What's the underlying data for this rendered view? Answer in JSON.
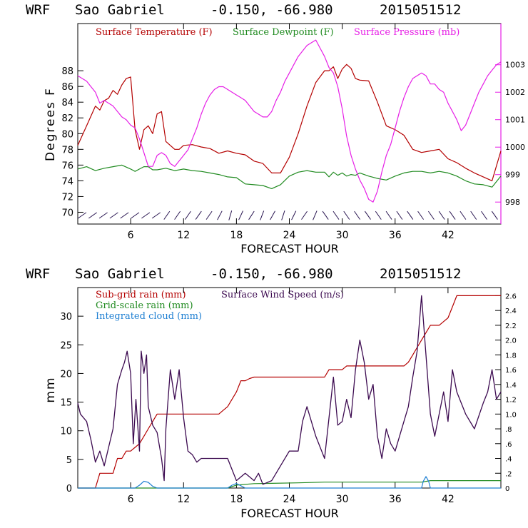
{
  "colors": {
    "temperature": "#b40000",
    "dewpoint": "#218b21",
    "pressure": "#e61ee6",
    "subgrid": "#b40000",
    "gridscale": "#218b21",
    "cloud": "#1e7fd2",
    "wind": "#3c0a50",
    "axes": "#000000",
    "wind_barb": "#281450"
  },
  "chart_data": [
    {
      "type": "line",
      "header": {
        "model": "WRF",
        "station": "Sao Gabriel",
        "coords": "-0.150, -66.980",
        "run": "2015051512"
      },
      "xlabel": "FORECAST HOUR",
      "ylabel": "Degrees F",
      "xlim": [
        0,
        48
      ],
      "ylim": [
        68.5,
        94
      ],
      "y2lim": [
        997.2,
        1004.5
      ],
      "xticks": [
        6,
        12,
        18,
        24,
        30,
        36,
        42
      ],
      "yticks": [
        70,
        72,
        74,
        76,
        78,
        80,
        82,
        84,
        86,
        88
      ],
      "y2ticks": [
        998,
        999,
        1000,
        1001,
        1002,
        1003
      ],
      "legend": [
        "Surface Temperature (F)",
        "Surface Dewpoint (F)",
        "Surface Pressure (mb)"
      ],
      "series": [
        {
          "name": "Surface Temperature (F)",
          "x": [
            0,
            1,
            2,
            2.5,
            3,
            3.5,
            4,
            4.5,
            5,
            5.5,
            6,
            6.5,
            7,
            7.5,
            8,
            8.5,
            9,
            9.5,
            10,
            10.5,
            11,
            11.5,
            12,
            13,
            14,
            15,
            16,
            17,
            18,
            19,
            20,
            21,
            22,
            23,
            24,
            25,
            26,
            27,
            28,
            28.5,
            29,
            29.5,
            30,
            30.5,
            31,
            31.5,
            32,
            33,
            34,
            35,
            36,
            37,
            38,
            39,
            40,
            41,
            42,
            43,
            44,
            45,
            46,
            47,
            48
          ],
          "values": [
            78.5,
            81,
            83.5,
            83,
            84.2,
            84.5,
            85.5,
            85,
            86.2,
            87,
            87.2,
            80.5,
            78,
            80.5,
            81,
            80,
            82.5,
            82.8,
            79,
            78.5,
            78,
            78,
            78.5,
            78.6,
            78.3,
            78.1,
            77.5,
            77.8,
            77.5,
            77.3,
            76.5,
            76.2,
            75,
            75,
            77,
            80,
            83.5,
            86.5,
            88,
            88,
            88.5,
            87,
            88.2,
            88.8,
            88.3,
            87,
            86.8,
            86.7,
            84,
            81,
            80.5,
            79.8,
            78,
            77.6,
            77.8,
            78,
            76.8,
            76.3,
            75.6,
            75,
            74.5,
            74,
            77.8
          ]
        },
        {
          "name": "Surface Dewpoint (F)",
          "x": [
            0,
            1,
            2,
            3,
            4,
            5,
            6,
            6.5,
            7,
            7.5,
            8,
            8.5,
            9,
            10,
            11,
            12,
            13,
            14,
            15,
            16,
            17,
            18,
            19,
            20,
            21,
            22,
            23,
            24,
            25,
            26,
            27,
            28,
            28.5,
            29,
            29.5,
            30,
            30.5,
            31,
            31.5,
            32,
            33,
            34,
            35,
            36,
            37,
            38,
            39,
            40,
            41,
            42,
            43,
            44,
            45,
            46,
            47,
            48
          ],
          "values": [
            75.5,
            75.8,
            75.3,
            75.6,
            75.8,
            76,
            75.5,
            75.2,
            75.5,
            75.8,
            75.8,
            75.4,
            75.4,
            75.6,
            75.3,
            75.5,
            75.3,
            75.2,
            75,
            74.8,
            74.5,
            74.4,
            73.6,
            73.5,
            73.4,
            73,
            73.5,
            74.6,
            75.1,
            75.3,
            75.1,
            75.1,
            74.5,
            75.1,
            74.7,
            75,
            74.6,
            74.8,
            74.7,
            75,
            74.6,
            74.3,
            74.1,
            74.6,
            75,
            75.2,
            75.2,
            75,
            75.2,
            75,
            74.6,
            74,
            73.6,
            73.5,
            73.2,
            74.6
          ]
        },
        {
          "name": "Surface Pressure (mb)",
          "x": [
            0,
            0.5,
            1,
            1.5,
            2,
            2.5,
            3,
            3.5,
            4,
            4.5,
            5,
            5.5,
            6,
            6.5,
            7,
            7.5,
            8,
            8.5,
            9,
            9.5,
            10,
            10.5,
            11,
            11.5,
            12,
            12.5,
            13,
            13.5,
            14,
            14.5,
            15,
            15.5,
            16,
            16.5,
            17,
            17.5,
            18,
            18.5,
            19,
            19.5,
            20,
            20.5,
            21,
            21.5,
            22,
            22.5,
            23,
            23.5,
            24,
            24.5,
            25,
            25.5,
            26,
            26.5,
            27,
            27.5,
            28,
            28.5,
            29,
            29.5,
            30,
            30.5,
            31,
            31.5,
            32,
            32.5,
            33,
            33.5,
            34,
            34.5,
            35,
            35.5,
            36,
            36.5,
            37,
            37.5,
            38,
            38.5,
            39,
            39.5,
            40,
            40.5,
            41,
            41.5,
            42,
            42.5,
            43,
            43.5,
            44,
            44.5,
            45,
            45.5,
            46,
            46.5,
            47,
            47.5,
            48
          ],
          "values": [
            1002.6,
            1002.5,
            1002.4,
            1002.2,
            1002,
            1001.6,
            1001.7,
            1001.6,
            1001.5,
            1001.3,
            1001.1,
            1001,
            1000.8,
            1000.7,
            1000.3,
            999.8,
            999.3,
            999.3,
            999.7,
            999.8,
            999.7,
            999.4,
            999.3,
            999.5,
            999.7,
            999.9,
            1000.3,
            1000.7,
            1001.2,
            1001.6,
            1001.9,
            1002.1,
            1002.2,
            1002.2,
            1002.1,
            1002,
            1001.9,
            1001.8,
            1001.7,
            1001.5,
            1001.3,
            1001.2,
            1001.1,
            1001.1,
            1001.3,
            1001.7,
            1002,
            1002.4,
            1002.7,
            1003,
            1003.3,
            1003.5,
            1003.7,
            1003.8,
            1003.9,
            1003.6,
            1003.3,
            1002.9,
            1002.7,
            1002.2,
            1001.4,
            1000.4,
            999.7,
            999.2,
            998.8,
            998.5,
            998.1,
            998,
            998.4,
            999.1,
            999.7,
            1000.1,
            1000.7,
            1001.3,
            1001.8,
            1002.2,
            1002.5,
            1002.6,
            1002.7,
            1002.6,
            1002.3,
            1002.3,
            1002.1,
            1002,
            1001.6,
            1001.3,
            1001,
            1000.6,
            1000.8,
            1001.2,
            1001.6,
            1002,
            1002.3,
            1002.6,
            1002.8,
            1003,
            1003.1
          ]
        }
      ],
      "wind_barbs_row_value": 69.6
    },
    {
      "type": "line",
      "header": {
        "model": "WRF",
        "station": "Sao Gabriel",
        "coords": "-0.150, -66.980",
        "run": "2015051512"
      },
      "xlabel": "FORECAST HOUR",
      "ylabel": "mm",
      "xlim": [
        0,
        48
      ],
      "ylim": [
        0,
        35
      ],
      "y2lim": [
        0,
        2.71
      ],
      "xticks": [
        6,
        12,
        18,
        24,
        30,
        36,
        42
      ],
      "yticks": [
        0,
        5,
        10,
        15,
        20,
        25,
        30
      ],
      "y2ticks": [
        0,
        0.2,
        0.4,
        0.6,
        0.8,
        1.0,
        1.2,
        1.4,
        1.6,
        1.8,
        2.0,
        2.2,
        2.4,
        2.6
      ],
      "y2tick_labels": [
        "0",
        ".2",
        ".4",
        ".6",
        ".8",
        "1.0",
        "1.2",
        "1.4",
        "1.6",
        "1.8",
        "2.0",
        "2.2",
        "2.4",
        "2.6"
      ],
      "legend": [
        "Sub-grid rain (mm)",
        "Grid-scale rain (mm)",
        "Integrated cloud (mm)",
        "Surface Wind Speed (m/s)"
      ],
      "series": [
        {
          "name": "Sub-grid rain (mm)",
          "x": [
            0,
            2,
            2.5,
            4,
            4.5,
            5,
            5.5,
            6,
            6.5,
            7,
            7.5,
            8,
            8.5,
            9,
            9.5,
            16,
            16.5,
            17,
            17.5,
            18,
            18.5,
            19,
            19.5,
            20,
            20.5,
            21,
            21.5,
            22,
            22.5,
            23,
            28,
            28.5,
            29,
            30,
            30.5,
            31,
            31.5,
            37,
            37.5,
            38,
            38.5,
            39,
            39.5,
            40,
            41,
            41.5,
            42,
            42.5,
            43,
            48
          ],
          "values": [
            0,
            0,
            0.2,
            0.2,
            0.4,
            0.4,
            0.5,
            0.5,
            0.55,
            0.6,
            0.7,
            0.8,
            0.9,
            1.0,
            1.0,
            1.0,
            1.05,
            1.1,
            1.2,
            1.3,
            1.45,
            1.45,
            1.48,
            1.5,
            1.5,
            1.5,
            1.5,
            1.5,
            1.5,
            1.5,
            1.5,
            1.6,
            1.6,
            1.6,
            1.65,
            1.65,
            1.65,
            1.65,
            1.7,
            1.8,
            1.9,
            2.0,
            2.1,
            2.2,
            2.2,
            2.25,
            2.3,
            2.45,
            2.6,
            2.6
          ]
        },
        {
          "name": "Grid-scale rain (mm)",
          "x": [
            0,
            17,
            18,
            20,
            25,
            28,
            30,
            39,
            40,
            48
          ],
          "values": [
            0,
            0,
            0.04,
            0.06,
            0.07,
            0.08,
            0.08,
            0.08,
            0.1,
            0.1
          ]
        },
        {
          "name": "Integrated cloud (mm)",
          "x": [
            0,
            6.5,
            7,
            7.5,
            8,
            8.5,
            9,
            17,
            17.5,
            18,
            18.5,
            19,
            39,
            39.2,
            39.5,
            39.8,
            40,
            48
          ],
          "values": [
            0,
            0,
            0.5,
            1.2,
            1.0,
            0.3,
            0,
            0,
            0.5,
            0.8,
            0.4,
            0,
            0,
            1.2,
            2.0,
            1.2,
            0,
            0
          ]
        },
        {
          "name": "Surface Wind Speed (m/s)",
          "x": [
            0,
            0.3,
            1,
            1.5,
            2,
            2.5,
            3,
            3.5,
            4,
            4.5,
            5,
            5.3,
            5.6,
            6,
            6.3,
            6.6,
            7,
            7.2,
            7.5,
            7.8,
            8,
            8.5,
            9,
            9.5,
            9.8,
            10,
            10.5,
            11,
            11.5,
            12,
            12.5,
            13,
            13.5,
            14,
            15,
            16,
            17,
            17.5,
            18,
            18.5,
            19,
            20,
            20.5,
            21,
            22,
            23,
            24,
            25,
            25.5,
            26,
            27,
            28,
            28.5,
            29,
            29.5,
            30,
            30.5,
            31,
            31.5,
            32,
            32.5,
            33,
            33.5,
            34,
            34.5,
            35,
            35.5,
            36,
            37,
            37.5,
            38,
            38.5,
            39,
            39.5,
            40,
            40.5,
            41,
            41.5,
            42,
            42.5,
            43,
            44,
            45,
            46,
            46.5,
            47,
            47.5,
            48
          ],
          "values": [
            1.15,
            1.0,
            0.9,
            0.65,
            0.35,
            0.5,
            0.3,
            0.55,
            0.8,
            1.4,
            1.6,
            1.7,
            1.85,
            1.55,
            0.6,
            1.2,
            0.5,
            1.85,
            1.55,
            1.8,
            1.1,
            0.85,
            0.75,
            0.4,
            0.1,
            0.8,
            1.6,
            1.2,
            1.6,
            0.95,
            0.5,
            0.45,
            0.35,
            0.4,
            0.4,
            0.4,
            0.4,
            0.25,
            0.1,
            0.15,
            0.2,
            0.1,
            0.2,
            0.05,
            0.1,
            0.3,
            0.5,
            0.5,
            0.9,
            1.1,
            0.7,
            0.4,
            0.95,
            1.5,
            0.85,
            0.9,
            1.2,
            0.95,
            1.6,
            2.0,
            1.7,
            1.2,
            1.4,
            0.7,
            0.4,
            0.8,
            0.6,
            0.5,
            0.9,
            1.1,
            1.5,
            1.85,
            2.6,
            1.8,
            1.0,
            0.7,
            1.0,
            1.3,
            0.9,
            1.6,
            1.3,
            1.0,
            0.8,
            1.15,
            1.3,
            1.6,
            1.2,
            1.3
          ]
        }
      ]
    }
  ]
}
